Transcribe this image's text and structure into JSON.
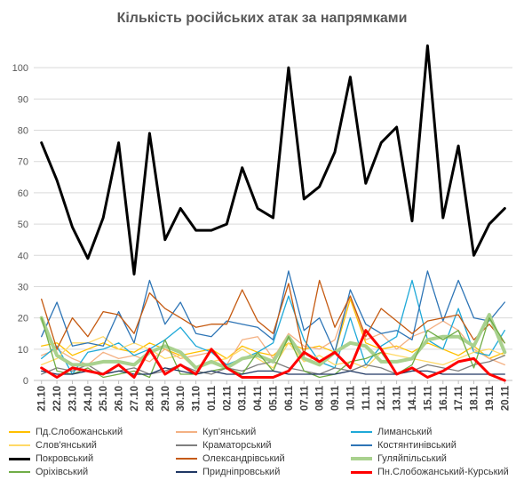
{
  "chart_data": {
    "type": "line",
    "title": "Кількість російських атак за напрямками",
    "xlabel": "",
    "ylabel": "",
    "ylim": [
      0,
      108
    ],
    "yticks": [
      0,
      10,
      20,
      30,
      40,
      50,
      60,
      70,
      80,
      90,
      100
    ],
    "grid": "horizontal",
    "legend_position": "bottom",
    "x": [
      "21.10",
      "22.10",
      "23.10",
      "24.10",
      "25.10",
      "26.10",
      "27.10",
      "28.10",
      "29.10",
      "30.10",
      "31.10",
      "01.11",
      "02.11",
      "03.11",
      "04.11",
      "05.11",
      "06.11",
      "07.11",
      "08.11",
      "09.11",
      "10.11",
      "11.11",
      "12.11",
      "13.11",
      "14.11",
      "15.11",
      "16.11",
      "17.11",
      "18.11",
      "19.11",
      "20.11"
    ],
    "series": [
      {
        "name": "Пд.Слобожанський",
        "color": "#ffc000",
        "width": 1.3,
        "values": [
          11,
          12,
          8,
          10,
          12,
          10,
          9,
          12,
          10,
          8,
          9,
          10,
          7,
          11,
          9,
          8,
          12,
          10,
          11,
          9,
          26,
          12,
          10,
          11,
          9,
          12,
          10,
          8,
          11,
          7,
          9
        ]
      },
      {
        "name": "Куп'янський",
        "color": "#f4b183",
        "width": 1.3,
        "values": [
          8,
          10,
          7,
          5,
          9,
          7,
          8,
          6,
          10,
          7,
          8,
          9,
          5,
          13,
          14,
          7,
          15,
          11,
          10,
          13,
          27,
          13,
          15,
          10,
          14,
          16,
          19,
          16,
          10,
          7,
          5
        ]
      },
      {
        "name": "Лиманський",
        "color": "#1fa9d8",
        "width": 1.3,
        "values": [
          7,
          11,
          2,
          9,
          10,
          12,
          8,
          10,
          13,
          17,
          11,
          9,
          5,
          7,
          9,
          12,
          27,
          13,
          6,
          4,
          20,
          5,
          11,
          14,
          32,
          13,
          10,
          23,
          9,
          8,
          16
        ]
      },
      {
        "name": "Слов'янський",
        "color": "#ffd966",
        "width": 1.3,
        "values": [
          5,
          7,
          12,
          12,
          14,
          10,
          12,
          10,
          7,
          8,
          4,
          6,
          7,
          10,
          7,
          4,
          12,
          6,
          8,
          5,
          6,
          4,
          9,
          8,
          7,
          6,
          5,
          7,
          9,
          10,
          8
        ]
      },
      {
        "name": "Краматорський",
        "color": "#7f7f7f",
        "width": 1.3,
        "values": [
          2,
          4,
          3,
          5,
          2,
          3,
          4,
          2,
          3,
          5,
          3,
          2,
          4,
          3,
          5,
          6,
          4,
          3,
          2,
          4,
          3,
          5,
          4,
          2,
          3,
          5,
          4,
          3,
          5,
          6,
          8
        ]
      },
      {
        "name": "Костянтинівський",
        "color": "#2e75b6",
        "width": 1.3,
        "values": [
          14,
          25,
          11,
          12,
          11,
          22,
          12,
          32,
          18,
          25,
          15,
          14,
          19,
          18,
          17,
          13,
          35,
          16,
          20,
          9,
          29,
          18,
          15,
          16,
          13,
          35,
          19,
          32,
          20,
          19,
          25
        ]
      },
      {
        "name": "Покровський",
        "color": "#000000",
        "width": 3,
        "values": [
          76,
          64,
          49,
          39,
          52,
          76,
          34,
          79,
          45,
          55,
          48,
          48,
          50,
          68,
          55,
          52,
          100,
          58,
          62,
          73,
          97,
          63,
          76,
          81,
          51,
          107,
          52,
          75,
          40,
          50,
          55
        ]
      },
      {
        "name": "Олександрівський",
        "color": "#c55a11",
        "width": 1.3,
        "values": [
          26,
          10,
          20,
          14,
          22,
          21,
          15,
          28,
          23,
          20,
          17,
          18,
          18,
          29,
          19,
          15,
          31,
          8,
          32,
          17,
          27,
          14,
          23,
          19,
          15,
          19,
          20,
          21,
          13,
          18,
          12
        ]
      },
      {
        "name": "Гуляйпільський",
        "color": "#a9d18e",
        "width": 4,
        "values": [
          20,
          8,
          5,
          5,
          6,
          6,
          5,
          9,
          11,
          9,
          4,
          6,
          4,
          7,
          8,
          6,
          14,
          7,
          5,
          9,
          12,
          11,
          6,
          6,
          7,
          13,
          14,
          14,
          11,
          21,
          9
        ]
      },
      {
        "name": "Оріхівський",
        "color": "#70ad47",
        "width": 1.3,
        "values": [
          20,
          3,
          2,
          4,
          1,
          2,
          3,
          1,
          13,
          2,
          2,
          3,
          4,
          2,
          9,
          3,
          14,
          3,
          1,
          2,
          6,
          7,
          9,
          2,
          5,
          16,
          13,
          16,
          4,
          20,
          12
        ]
      },
      {
        "name": "Придніпровський",
        "color": "#203864",
        "width": 1.3,
        "values": [
          3,
          2,
          2,
          3,
          2,
          3,
          2,
          2,
          4,
          3,
          2,
          3,
          2,
          2,
          3,
          3,
          2,
          2,
          2,
          2,
          3,
          2,
          2,
          2,
          3,
          3,
          2,
          2,
          2,
          2,
          2
        ]
      },
      {
        "name": "Пн.Слобожанський-Курський",
        "color": "#ff0000",
        "width": 3,
        "values": [
          4,
          1,
          4,
          3,
          2,
          5,
          1,
          10,
          2,
          5,
          2,
          10,
          4,
          1,
          1,
          1,
          3,
          9,
          6,
          9,
          4,
          16,
          10,
          2,
          4,
          1,
          3,
          6,
          7,
          2,
          0
        ]
      }
    ]
  }
}
